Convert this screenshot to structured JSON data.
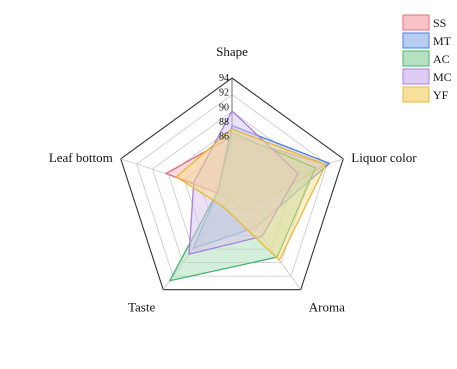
{
  "chart_data": {
    "type": "radar",
    "axes": [
      "Shape",
      "Liquor color",
      "Aroma",
      "Taste",
      "Leaf bottom"
    ],
    "rlim": [
      78,
      94
    ],
    "ticks": [
      78,
      82,
      86,
      88,
      90,
      92,
      94
    ],
    "tick_labels": [
      "",
      "",
      "86",
      "88",
      "90",
      "92",
      "94"
    ],
    "grid": true,
    "legend_position": "top-right",
    "series": [
      {
        "name": "SS",
        "values": [
          86,
          91.5,
          81,
          78.5,
          87.5
        ],
        "stroke": "#e0707b",
        "fill": "#f6b8bf"
      },
      {
        "name": "MT",
        "values": [
          87.5,
          92,
          83.5,
          87,
          80
        ],
        "stroke": "#4f7fd6",
        "fill": "#a9c4ec"
      },
      {
        "name": "AC",
        "values": [
          86.5,
          90,
          88.5,
          92.5,
          80
        ],
        "stroke": "#45b56b",
        "fill": "#a8ddb8"
      },
      {
        "name": "MC",
        "values": [
          89.5,
          87.5,
          85,
          88,
          83.5
        ],
        "stroke": "#a77de0",
        "fill": "#d8c3f0"
      },
      {
        "name": "YF",
        "values": [
          87,
          91.5,
          89,
          80,
          86
        ],
        "stroke": "#e8b838",
        "fill": "#f7dc8c"
      }
    ]
  }
}
